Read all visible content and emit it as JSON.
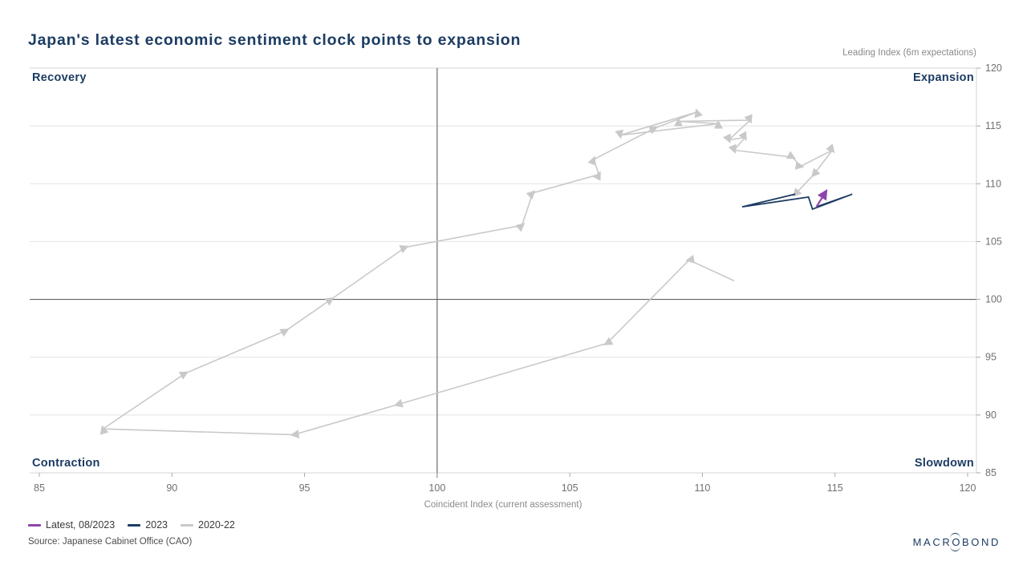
{
  "title": "Japan's latest economic sentiment clock points to expansion",
  "source": "Source: Japanese Cabinet Office (CAO)",
  "logo": {
    "pre": "MACR",
    "o": "O",
    "post": "BOND"
  },
  "colors": {
    "navy": "#1c3c63",
    "latest_purple": "#8e44ad",
    "series_2023": "#1d3c63",
    "series_2020_22": "#c9c9c9",
    "gridline": "#e4e4e4",
    "plot_border": "#d4d4d4",
    "hundred_line": "#4f4f4f",
    "tick_text": "#707070"
  },
  "legend": {
    "items": [
      {
        "label": "Latest, 08/2023",
        "color": "#8e44ad"
      },
      {
        "label": "2023",
        "color": "#1d3c63"
      },
      {
        "label": "2020-22",
        "color": "#c9c9c9"
      }
    ]
  },
  "chart_data": {
    "type": "line",
    "title": "Japan's latest economic sentiment clock points to expansion",
    "xlabel": "Coincident Index (current assessment)",
    "ylabel": "Leading Index (6m expectations)",
    "xlim": [
      85,
      120
    ],
    "ylim": [
      85,
      120
    ],
    "x_ticks": [
      85,
      90,
      95,
      100,
      105,
      110,
      115,
      120
    ],
    "y_ticks": [
      85,
      90,
      95,
      100,
      105,
      110,
      115,
      120
    ],
    "grid": true,
    "legend_position": "bottom-left",
    "reference_lines": {
      "x": 100,
      "y": 100
    },
    "quadrants": {
      "top_left": "Recovery",
      "top_right": "Expansion",
      "bottom_left": "Contraction",
      "bottom_right": "Slowdown"
    },
    "series": [
      {
        "name": "2020-22",
        "color": "#c9c9c9",
        "width": 1.6,
        "arrows": "mid-and-end",
        "points": [
          [
            111.2,
            101.6
          ],
          [
            109.5,
            103.4
          ],
          [
            106.4,
            96.2
          ],
          [
            98.5,
            90.9
          ],
          [
            94.6,
            88.3
          ],
          [
            87.4,
            88.8
          ],
          [
            90.5,
            93.6
          ],
          [
            94.3,
            97.3
          ],
          [
            96.0,
            100.0
          ],
          [
            98.8,
            104.5
          ],
          [
            103.2,
            106.4
          ],
          [
            103.6,
            109.2
          ],
          [
            106.1,
            110.8
          ],
          [
            105.9,
            112.1
          ],
          [
            108.2,
            114.8
          ],
          [
            109.8,
            116.2
          ],
          [
            106.9,
            114.2
          ],
          [
            110.6,
            115.2
          ],
          [
            109.1,
            115.4
          ],
          [
            111.8,
            115.5
          ],
          [
            111.0,
            113.8
          ],
          [
            111.6,
            114.0
          ],
          [
            111.2,
            112.9
          ],
          [
            113.4,
            112.3
          ],
          [
            113.7,
            111.5
          ],
          [
            114.9,
            112.9
          ],
          [
            114.2,
            110.8
          ],
          [
            113.5,
            109.1
          ]
        ]
      },
      {
        "name": "2023",
        "color": "#1d3c63",
        "width": 1.8,
        "arrows": "none",
        "points": [
          [
            113.5,
            109.1
          ],
          [
            111.5,
            108.0
          ],
          [
            114.0,
            108.85
          ],
          [
            114.15,
            107.8
          ],
          [
            115.65,
            109.1
          ],
          [
            114.3,
            108.0
          ]
        ]
      },
      {
        "name": "Latest, 08/2023",
        "color": "#8e44ad",
        "width": 2.2,
        "arrows": "end",
        "points": [
          [
            114.3,
            108.0
          ],
          [
            114.65,
            109.3
          ]
        ]
      }
    ]
  }
}
